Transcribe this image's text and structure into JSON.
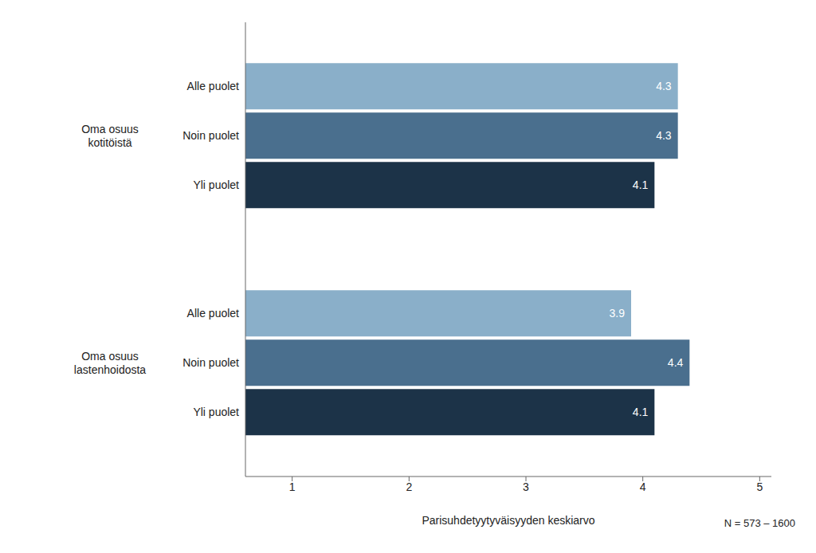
{
  "chart_data": {
    "type": "bar",
    "orientation": "horizontal",
    "xlabel": "Parisuhdetyytyväisyyden keskiarvo",
    "categories": [
      "Oma osuus\nkotitöistä",
      "Oma osuus\nlastenhoidosta"
    ],
    "series": [
      {
        "name": "Alle puolet",
        "color": "#8aafc9",
        "values": [
          4.3,
          3.9
        ]
      },
      {
        "name": "Noin puolet",
        "color": "#4a6f8e",
        "values": [
          4.3,
          4.4
        ]
      },
      {
        "name": "Yli puolet",
        "color": "#1c3348",
        "values": [
          4.1,
          4.1
        ]
      }
    ],
    "xlim": [
      0.6,
      5.1
    ],
    "xticks": [
      1,
      2,
      3,
      4,
      5
    ],
    "data_labels": true,
    "grid": false,
    "note": "N = 573 – 1600"
  }
}
